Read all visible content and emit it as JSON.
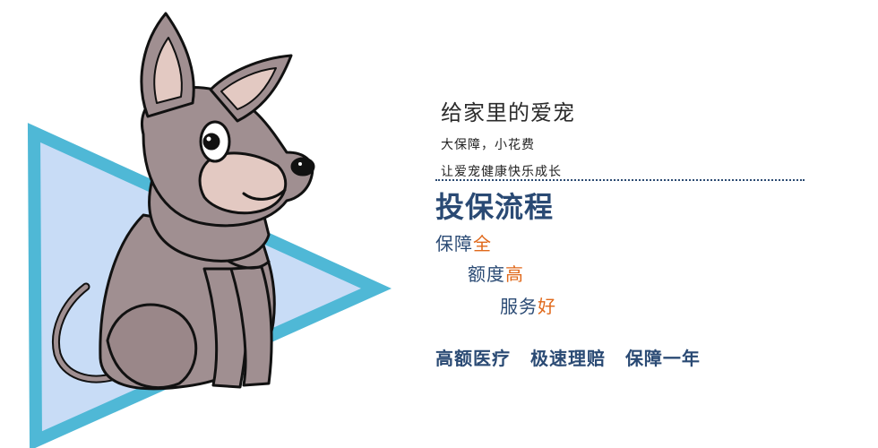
{
  "hero": {
    "tagline": "给家里的爱宠",
    "subline_1": "大保障，小花费",
    "subline_2": "让爱宠健康快乐成长"
  },
  "process": {
    "title": "投保流程",
    "steps": [
      {
        "text": "保障",
        "highlight": "全"
      },
      {
        "text": "额度",
        "highlight": "高"
      },
      {
        "text": "服务",
        "highlight": "好"
      }
    ]
  },
  "features": [
    "高额医疗",
    "极速理赔",
    "保障一年"
  ],
  "colors": {
    "navy": "#2a4a74",
    "orange": "#e0691b",
    "triangle_fill": "#c8dcf6",
    "triangle_border": "#4fb8d6",
    "dog_fur": "#a08f91",
    "dog_ear_inner": "#e3c9c2"
  }
}
